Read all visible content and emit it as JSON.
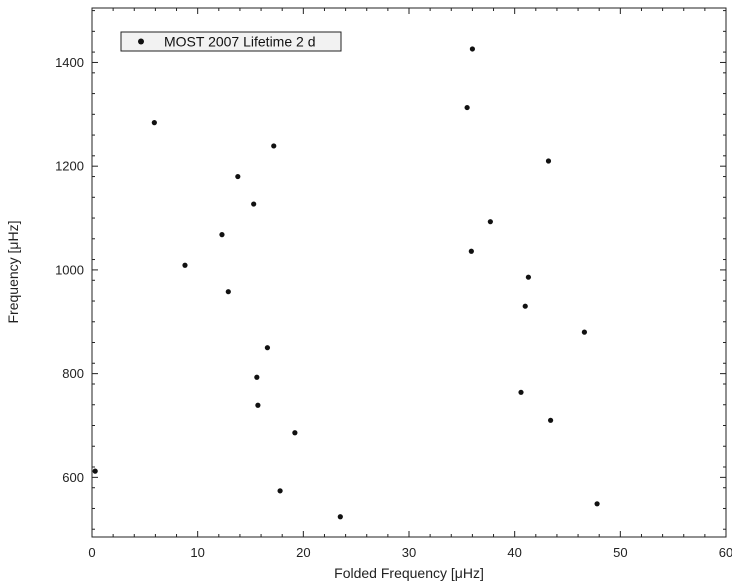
{
  "chart_data": {
    "type": "scatter",
    "xlabel": "Folded Frequency [μHz]",
    "ylabel": "Frequency [μHz]",
    "xlim": [
      0,
      60
    ],
    "ylim": [
      485,
      1505
    ],
    "x_ticks": [
      0,
      10,
      20,
      30,
      40,
      50,
      60
    ],
    "y_ticks": [
      600,
      800,
      1000,
      1200,
      1400
    ],
    "grid": false,
    "legend": {
      "position": "top-left"
    },
    "series": [
      {
        "name": "MOST 2007 Lifetime 2 d",
        "marker": "filled-circle",
        "color": "#111111",
        "points": [
          {
            "x": 0.3,
            "y": 612
          },
          {
            "x": 5.9,
            "y": 1284
          },
          {
            "x": 8.8,
            "y": 1009
          },
          {
            "x": 12.3,
            "y": 1068
          },
          {
            "x": 12.9,
            "y": 958
          },
          {
            "x": 13.8,
            "y": 1180
          },
          {
            "x": 15.3,
            "y": 1127
          },
          {
            "x": 15.6,
            "y": 793
          },
          {
            "x": 15.7,
            "y": 739
          },
          {
            "x": 16.6,
            "y": 850
          },
          {
            "x": 17.2,
            "y": 1239
          },
          {
            "x": 17.8,
            "y": 574
          },
          {
            "x": 19.2,
            "y": 686
          },
          {
            "x": 23.5,
            "y": 524
          },
          {
            "x": 35.5,
            "y": 1313
          },
          {
            "x": 36.0,
            "y": 1426
          },
          {
            "x": 35.9,
            "y": 1036
          },
          {
            "x": 37.7,
            "y": 1093
          },
          {
            "x": 40.6,
            "y": 764
          },
          {
            "x": 41.0,
            "y": 930
          },
          {
            "x": 41.3,
            "y": 986
          },
          {
            "x": 43.2,
            "y": 1210
          },
          {
            "x": 43.4,
            "y": 710
          },
          {
            "x": 46.6,
            "y": 880
          },
          {
            "x": 47.8,
            "y": 549
          }
        ]
      }
    ]
  }
}
